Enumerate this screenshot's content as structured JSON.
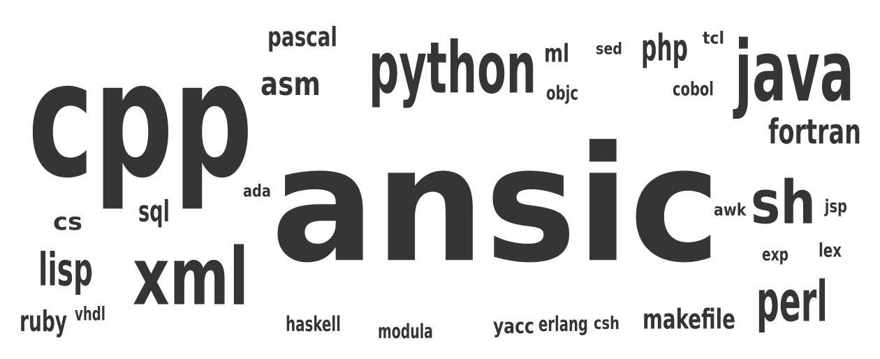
{
  "cloud": {
    "color": "#353535",
    "words": [
      {
        "id": "ansic",
        "text": "ansic"
      },
      {
        "id": "cpp",
        "text": "cpp"
      },
      {
        "id": "python",
        "text": "python"
      },
      {
        "id": "java",
        "text": "java"
      },
      {
        "id": "xml",
        "text": "xml"
      },
      {
        "id": "sh",
        "text": "sh"
      },
      {
        "id": "perl",
        "text": "perl"
      },
      {
        "id": "fortran",
        "text": "fortran"
      },
      {
        "id": "lisp",
        "text": "lisp"
      },
      {
        "id": "makefile",
        "text": "makefile"
      },
      {
        "id": "asm",
        "text": "asm"
      },
      {
        "id": "pascal",
        "text": "pascal"
      },
      {
        "id": "php",
        "text": "php"
      },
      {
        "id": "cs",
        "text": "cs"
      },
      {
        "id": "sql",
        "text": "sql"
      },
      {
        "id": "ruby",
        "text": "ruby"
      },
      {
        "id": "ml",
        "text": "ml"
      },
      {
        "id": "cobol",
        "text": "cobol"
      },
      {
        "id": "sed",
        "text": "sed"
      },
      {
        "id": "tcl",
        "text": "tcl"
      },
      {
        "id": "objc",
        "text": "objc"
      },
      {
        "id": "ada",
        "text": "ada"
      },
      {
        "id": "awk",
        "text": "awk"
      },
      {
        "id": "jsp",
        "text": "jsp"
      },
      {
        "id": "exp",
        "text": "exp"
      },
      {
        "id": "lex",
        "text": "lex"
      },
      {
        "id": "vhdl",
        "text": "vhdl"
      },
      {
        "id": "haskell",
        "text": "haskell"
      },
      {
        "id": "modula",
        "text": "modula"
      },
      {
        "id": "yacc",
        "text": "yacc"
      },
      {
        "id": "erlang",
        "text": "erlang"
      },
      {
        "id": "csh",
        "text": "csh"
      }
    ]
  }
}
